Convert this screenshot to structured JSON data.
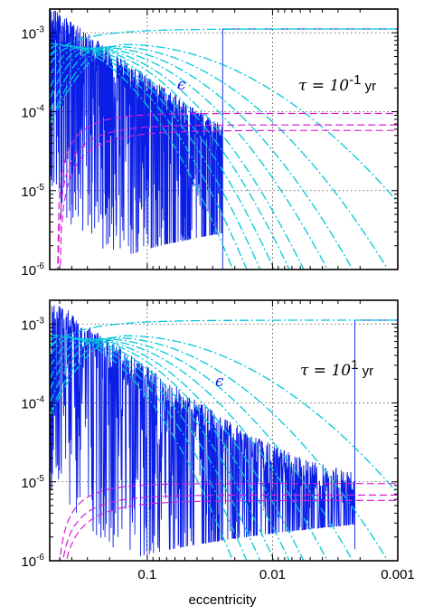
{
  "chart_data": [
    {
      "type": "line",
      "panel": "top",
      "annotation": {
        "tau_prefix": "τ = 10",
        "tau_exp": "-1",
        "tau_unit": " yr",
        "epsilon": "ϵ"
      },
      "xscale": "log",
      "x_reversed": true,
      "xlim": [
        0.6,
        0.001
      ],
      "ylim": [
        1e-06,
        0.002
      ],
      "yscale": "log",
      "y_ticks": [
        {
          "base": "10",
          "exp": "-6"
        },
        {
          "base": "10",
          "exp": "-5"
        },
        {
          "base": "10",
          "exp": "-4"
        },
        {
          "base": "10",
          "exp": "-3"
        }
      ],
      "x_ticks": [
        "0.1",
        "0.01",
        "0.001"
      ],
      "grid": true,
      "colors": {
        "noisy": "#0a1ee6",
        "cyan": "#00c8dc",
        "magenta": "#d81ed8"
      },
      "epsilon_step": {
        "x_drop": 0.025,
        "y_high": 0.00112,
        "y_low_edge": 1e-06
      },
      "cyan_curves": [
        {
          "peak_x": 0.56,
          "peak_y": 0.00072,
          "width": 0.22
        },
        {
          "peak_x": 0.5,
          "peak_y": 0.0007,
          "width": 0.23
        },
        {
          "peak_x": 0.45,
          "peak_y": 0.00068,
          "width": 0.24
        },
        {
          "peak_x": 0.4,
          "peak_y": 0.00066,
          "width": 0.25
        },
        {
          "peak_x": 0.35,
          "peak_y": 0.00065,
          "width": 0.26
        },
        {
          "peak_x": 0.31,
          "peak_y": 0.00064,
          "width": 0.27
        },
        {
          "peak_x": 0.27,
          "peak_y": 0.00064,
          "width": 0.29
        },
        {
          "peak_x": 0.23,
          "peak_y": 0.00065,
          "width": 0.31
        },
        {
          "peak_x": 0.19,
          "peak_y": 0.00067,
          "width": 0.34
        },
        {
          "peak_x": 0.15,
          "peak_y": 0.00071,
          "width": 0.4
        }
      ],
      "magenta_levels": [
        9.5e-05,
        6.8e-05,
        5.8e-05
      ]
    },
    {
      "type": "line",
      "panel": "bottom",
      "annotation": {
        "tau_prefix": "τ = 10",
        "tau_exp": "1",
        "tau_unit": " yr",
        "epsilon": "ϵ"
      },
      "xscale": "log",
      "x_reversed": true,
      "xlim": [
        0.6,
        0.001
      ],
      "ylim": [
        1e-06,
        0.002
      ],
      "yscale": "log",
      "y_ticks": [
        {
          "base": "10",
          "exp": "-6"
        },
        {
          "base": "10",
          "exp": "-5"
        },
        {
          "base": "10",
          "exp": "-4"
        },
        {
          "base": "10",
          "exp": "-3"
        }
      ],
      "x_ticks": [
        "0.1",
        "0.01",
        "0.001"
      ],
      "grid": true,
      "colors": {
        "noisy": "#0a1ee6",
        "cyan": "#00c8dc",
        "magenta": "#d81ed8"
      },
      "epsilon_step": {
        "x_drop": 0.0022,
        "y_high": 0.00112,
        "y_low_edge": 1.4e-06
      },
      "cyan_curves": [
        {
          "peak_x": 0.56,
          "peak_y": 0.00072,
          "width": 0.22
        },
        {
          "peak_x": 0.5,
          "peak_y": 0.0007,
          "width": 0.23
        },
        {
          "peak_x": 0.45,
          "peak_y": 0.00068,
          "width": 0.24
        },
        {
          "peak_x": 0.4,
          "peak_y": 0.00066,
          "width": 0.25
        },
        {
          "peak_x": 0.35,
          "peak_y": 0.00065,
          "width": 0.26
        },
        {
          "peak_x": 0.31,
          "peak_y": 0.00064,
          "width": 0.27
        },
        {
          "peak_x": 0.27,
          "peak_y": 0.00064,
          "width": 0.29
        },
        {
          "peak_x": 0.23,
          "peak_y": 0.00065,
          "width": 0.31
        },
        {
          "peak_x": 0.19,
          "peak_y": 0.00067,
          "width": 0.34
        },
        {
          "peak_x": 0.15,
          "peak_y": 0.00071,
          "width": 0.4
        }
      ],
      "magenta_levels": [
        9.5e-06,
        6.8e-06,
        5.8e-06
      ]
    }
  ],
  "xlabel": "eccentricity"
}
